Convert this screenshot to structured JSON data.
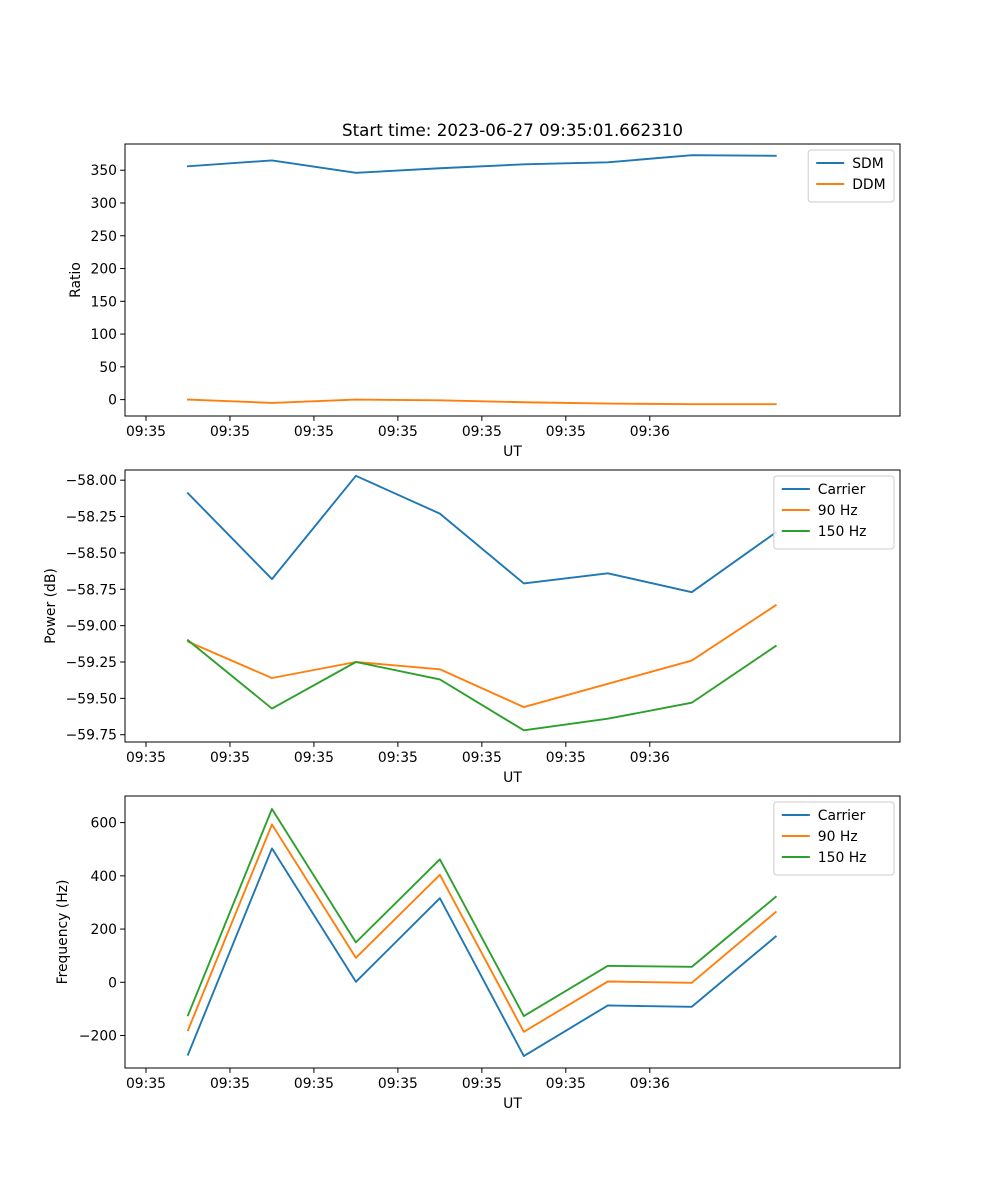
{
  "figure": {
    "title": "Start time: 2023-06-27 09:35:01.662310"
  },
  "chart_data": [
    {
      "type": "line",
      "title": "",
      "xlabel": "UT",
      "ylabel": "Ratio",
      "x_tick_labels": [
        "09:35",
        "09:35",
        "09:35",
        "09:35",
        "09:35",
        "09:35",
        "09:36"
      ],
      "xlim": [
        -0.25,
        8.98
      ],
      "ylim": [
        -25,
        390
      ],
      "y_ticks": [
        0,
        50,
        100,
        150,
        200,
        250,
        300,
        350
      ],
      "y_tick_labels": [
        "0",
        "50",
        "100",
        "150",
        "200",
        "250",
        "300",
        "350"
      ],
      "x": [
        0.5,
        1.5,
        2.5,
        3.5,
        4.5,
        5.5,
        6.5,
        7.5
      ],
      "series": [
        {
          "name": "SDM",
          "color": "#1f77b4",
          "values": [
            356,
            365,
            346,
            353,
            359,
            362,
            373,
            372
          ]
        },
        {
          "name": "DDM",
          "color": "#ff7f0e",
          "values": [
            0,
            -5,
            0,
            -1,
            -4,
            -6,
            -7,
            -7
          ]
        }
      ],
      "legend": "top-right",
      "grid": false
    },
    {
      "type": "line",
      "title": "",
      "xlabel": "UT",
      "ylabel": "Power (dB)",
      "x_tick_labels": [
        "09:35",
        "09:35",
        "09:35",
        "09:35",
        "09:35",
        "09:35",
        "09:36"
      ],
      "xlim": [
        -0.25,
        8.98
      ],
      "ylim": [
        -59.8,
        -57.93
      ],
      "y_ticks": [
        -58.0,
        -58.25,
        -58.5,
        -58.75,
        -59.0,
        -59.25,
        -59.5,
        -59.75
      ],
      "y_tick_labels": [
        "−58.00",
        "−58.25",
        "−58.50",
        "−58.75",
        "−59.00",
        "−59.25",
        "−59.50",
        "−59.75"
      ],
      "x": [
        0.5,
        1.5,
        2.5,
        3.5,
        4.5,
        5.5,
        6.5,
        7.5
      ],
      "series": [
        {
          "name": "Carrier",
          "color": "#1f77b4",
          "values": [
            -58.09,
            -58.68,
            -57.97,
            -58.23,
            -58.71,
            -58.64,
            -58.77,
            -58.36
          ]
        },
        {
          "name": "90 Hz",
          "color": "#ff7f0e",
          "values": [
            -59.11,
            -59.36,
            -59.25,
            -59.3,
            -59.56,
            -59.4,
            -59.24,
            -58.86
          ]
        },
        {
          "name": "150 Hz",
          "color": "#2ca02c",
          "values": [
            -59.1,
            -59.57,
            -59.25,
            -59.37,
            -59.72,
            -59.64,
            -59.53,
            -59.14
          ]
        }
      ],
      "legend": "top-right",
      "grid": false
    },
    {
      "type": "line",
      "title": "",
      "xlabel": "UT",
      "ylabel": "Frequency (Hz)",
      "x_tick_labels": [
        "09:35",
        "09:35",
        "09:35",
        "09:35",
        "09:35",
        "09:35",
        "09:36"
      ],
      "xlim": [
        -0.25,
        8.98
      ],
      "ylim": [
        -322,
        700
      ],
      "y_ticks": [
        -200,
        0,
        200,
        400,
        600
      ],
      "y_tick_labels": [
        "−200",
        "0",
        "200",
        "400",
        "600"
      ],
      "x": [
        0.5,
        1.5,
        2.5,
        3.5,
        4.5,
        5.5,
        6.5,
        7.5
      ],
      "series": [
        {
          "name": "Carrier",
          "color": "#1f77b4",
          "values": [
            -272,
            503,
            2,
            316,
            -277,
            -87,
            -92,
            172
          ]
        },
        {
          "name": "90 Hz",
          "color": "#ff7f0e",
          "values": [
            -180,
            593,
            92,
            404,
            -186,
            3,
            -2,
            264
          ]
        },
        {
          "name": "150 Hz",
          "color": "#2ca02c",
          "values": [
            -124,
            651,
            150,
            462,
            -127,
            62,
            58,
            321
          ]
        }
      ],
      "legend": "top-right",
      "grid": false
    }
  ]
}
